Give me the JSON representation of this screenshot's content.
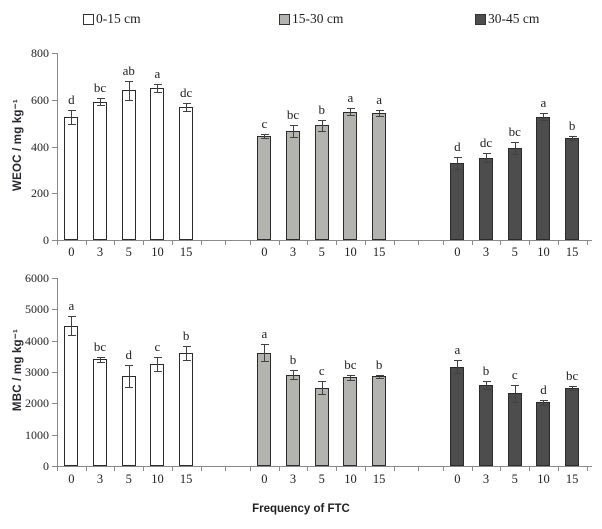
{
  "xlabel": "Frequency of FTC",
  "legend": [
    {
      "label": "0-15 cm",
      "fill": "#ffffff"
    },
    {
      "label": "15-30 cm",
      "fill": "#b3b3b0"
    },
    {
      "label": "30-45 cm",
      "fill": "#4d4d4d"
    }
  ],
  "colors": {
    "bar_border": "#2b2b2b",
    "axis": "#8a8a8a",
    "error": "#404040",
    "text": "#1f1f1f"
  },
  "chart_data": [
    {
      "type": "bar",
      "panel": "WEOC",
      "ylabel": "WEOC / mg kg⁻¹",
      "xlabel": "Frequency of FTC",
      "ylim": [
        0,
        800
      ],
      "yticks": [
        0,
        200,
        400,
        600,
        800
      ],
      "categories": [
        "0",
        "3",
        "5",
        "10",
        "15"
      ],
      "grid": false,
      "legend_position": "top",
      "series": [
        {
          "name": "0-15 cm",
          "values": [
            525,
            592,
            640,
            650,
            570
          ],
          "errors": [
            30,
            15,
            40,
            18,
            18
          ],
          "letters": [
            "d",
            "bc",
            "ab",
            "a",
            "dc"
          ]
        },
        {
          "name": "15-30 cm",
          "values": [
            445,
            465,
            490,
            548,
            543
          ],
          "errors": [
            10,
            25,
            22,
            15,
            12
          ],
          "letters": [
            "c",
            "bc",
            "b",
            "a",
            "a"
          ]
        },
        {
          "name": "30-45 cm",
          "values": [
            330,
            352,
            393,
            528,
            435
          ],
          "errors": [
            25,
            20,
            25,
            15,
            8
          ],
          "letters": [
            "d",
            "dc",
            "bc",
            "a",
            "b"
          ]
        }
      ]
    },
    {
      "type": "bar",
      "panel": "MBC",
      "ylabel": "MBC / mg kg⁻¹",
      "xlabel": "Frequency of FTC",
      "ylim": [
        0,
        6000
      ],
      "yticks": [
        0,
        1000,
        2000,
        3000,
        4000,
        5000,
        6000
      ],
      "categories": [
        "0",
        "3",
        "5",
        "10",
        "15"
      ],
      "grid": false,
      "legend_position": "top",
      "series": [
        {
          "name": "0-15 cm",
          "values": [
            4480,
            3400,
            2880,
            3250,
            3600
          ],
          "errors": [
            300,
            80,
            350,
            220,
            230
          ],
          "letters": [
            "a",
            "bc",
            "d",
            "c",
            "b"
          ]
        },
        {
          "name": "15-30 cm",
          "values": [
            3620,
            2920,
            2500,
            2830,
            2860
          ],
          "errors": [
            280,
            150,
            200,
            80,
            40
          ],
          "letters": [
            "a",
            "b",
            "c",
            "bc",
            "b"
          ]
        },
        {
          "name": "30-45 cm",
          "values": [
            3170,
            2590,
            2320,
            2030,
            2480
          ],
          "errors": [
            200,
            130,
            280,
            90,
            60
          ],
          "letters": [
            "a",
            "b",
            "c",
            "d",
            "bc"
          ]
        }
      ]
    }
  ]
}
